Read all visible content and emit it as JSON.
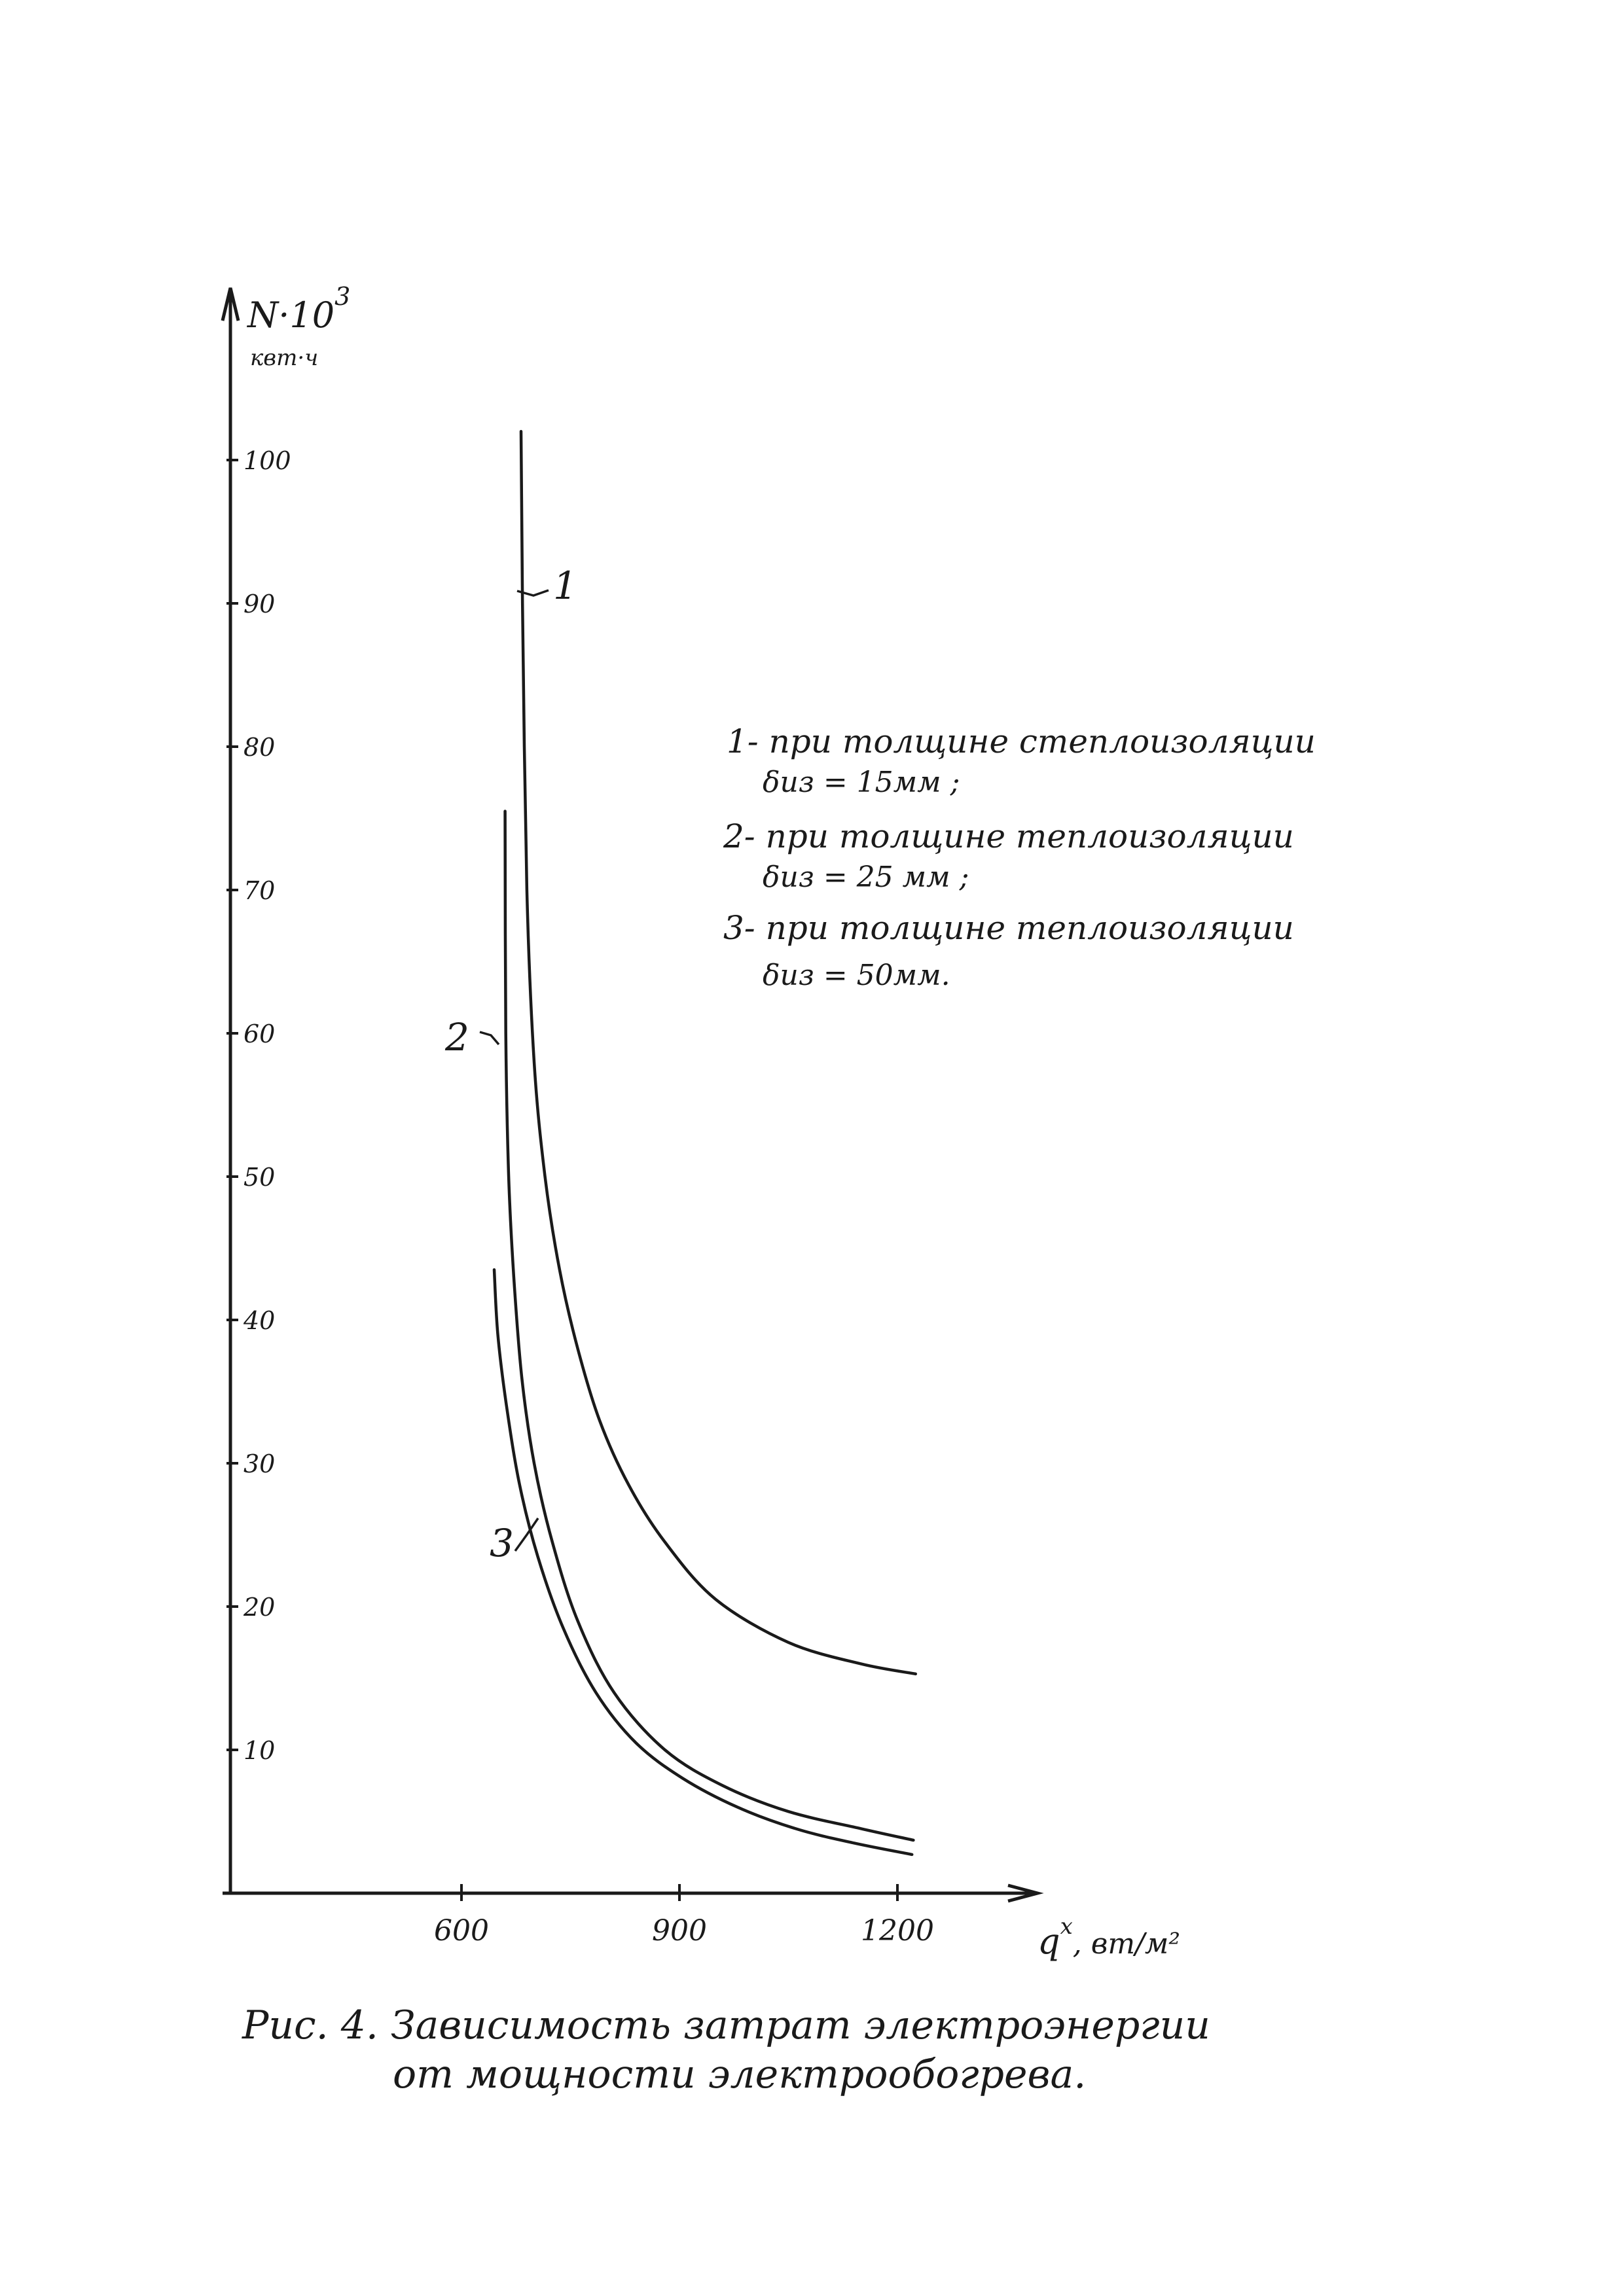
{
  "chart_data": {
    "type": "line",
    "title": "",
    "ylabel_main": "N·10",
    "ylabel_exp": "3",
    "ylabel_unit": "квт·ч",
    "xlabel_main": "q",
    "xlabel_sup": "x",
    "xlabel_unit": ", вт/м²",
    "xlim": [
      290,
      1410
    ],
    "ylim": [
      0,
      108
    ],
    "x_ticks": [
      600,
      900,
      1200
    ],
    "x_tick_labels": [
      "600",
      "900",
      "1200"
    ],
    "y_ticks": [
      10,
      20,
      30,
      40,
      50,
      60,
      70,
      80,
      90,
      100
    ],
    "y_tick_labels": [
      "10",
      "20",
      "30",
      "40",
      "50",
      "60",
      "70",
      "80",
      "90",
      "100"
    ],
    "grid": false,
    "series": [
      {
        "name": "1",
        "x": [
          682,
          684,
          690,
          700,
          715,
          735,
          760,
          790,
          830,
          880,
          950,
          1050,
          1150,
          1225
        ],
        "y": [
          102,
          90,
          70,
          58,
          50,
          43.5,
          38,
          33,
          28.5,
          24.5,
          20.5,
          17.5,
          16,
          15.3
        ]
      },
      {
        "name": "2",
        "x": [
          660,
          661,
          665,
          672,
          683,
          700,
          725,
          760,
          810,
          880,
          960,
          1050,
          1150,
          1222
        ],
        "y": [
          75.5,
          60,
          50,
          43,
          36,
          30,
          24.5,
          19,
          14,
          10,
          7.5,
          5.7,
          4.5,
          3.7
        ]
      },
      {
        "name": "3",
        "x": [
          645,
          650,
          662,
          680,
          705,
          740,
          785,
          840,
          905,
          980,
          1060,
          1140,
          1220
        ],
        "y": [
          43.5,
          39,
          34,
          28.5,
          23.5,
          18.5,
          14,
          10.5,
          8,
          6,
          4.5,
          3.5,
          2.7
        ]
      }
    ],
    "legend": [
      {
        "line1": "1- при толщине степлоизоляции",
        "line2": "δиз = 15мм ;"
      },
      {
        "line1": "2- при толщине теплоизоляции",
        "line2": "δиз = 25 мм ;"
      },
      {
        "line1": "3- при толщине теплоизоляции",
        "line2": "δиз = 50мм."
      }
    ],
    "curve_labels": [
      "1",
      "2",
      "3"
    ],
    "caption_line1": "Рис. 4.   Зависимость затрат электроэнергии",
    "caption_line2": "от   мощности электрообогрева."
  }
}
